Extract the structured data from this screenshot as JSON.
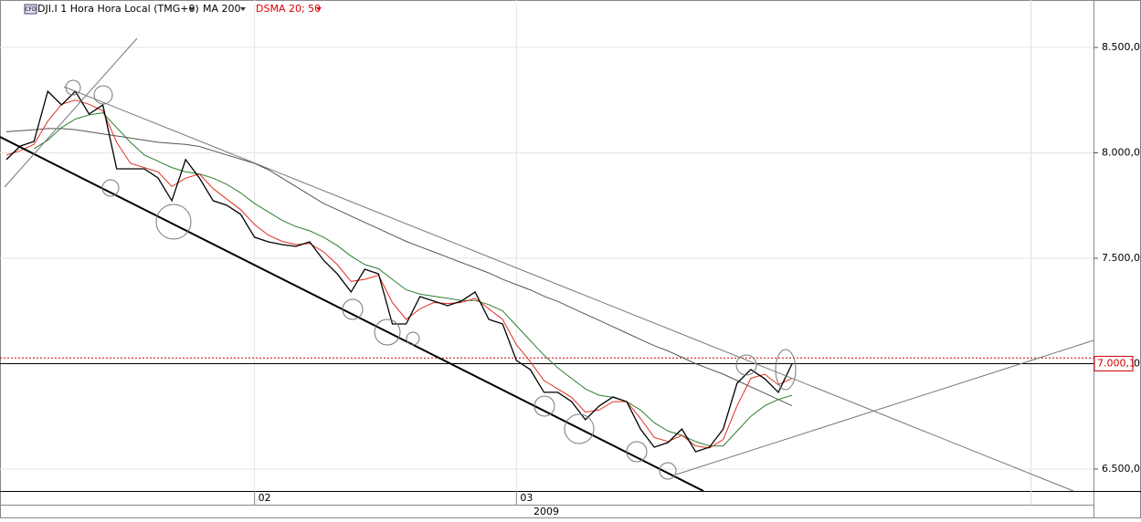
{
  "chart_data": {
    "type": "line",
    "title": "DJI.I 1 Hora Hora Local (TMG+0)",
    "badge": "CFD",
    "indicators": [
      "MA 200",
      "DSMA 20; 50"
    ],
    "categories": [
      null,
      null,
      null,
      null,
      null,
      null,
      null,
      null,
      null,
      null,
      null,
      null,
      null,
      null,
      null,
      null,
      null,
      null,
      "02",
      null,
      null,
      null,
      null,
      null,
      null,
      null,
      null,
      null,
      null,
      null,
      null,
      null,
      null,
      null,
      null,
      null,
      null,
      "03",
      null,
      null,
      null,
      null,
      null,
      null,
      null,
      null,
      null,
      null,
      null,
      null,
      null,
      null,
      null,
      null,
      null,
      null,
      null,
      null
    ],
    "year_label": "2009",
    "series": [
      {
        "name": "DJI.I",
        "color": "#000000",
        "width": 1.3,
        "values": [
          7968,
          8032,
          8054,
          8292,
          8227,
          8292,
          8184,
          8227,
          7924,
          7924,
          7924,
          7881,
          7773,
          7968,
          7881,
          7773,
          7751,
          7708,
          7600,
          7578,
          7565,
          7556,
          7578,
          7491,
          7426,
          7340,
          7448,
          7426,
          7188,
          7188,
          7318,
          7297,
          7275,
          7297,
          7340,
          7210,
          7188,
          7015,
          6972,
          6864,
          6864,
          6820,
          6734,
          6799,
          6842,
          6820,
          6690,
          6604,
          6626,
          6690,
          6582,
          6604,
          6690,
          6907,
          6972,
          6929,
          6864,
          7000
        ]
      },
      {
        "name": "DSMA 20",
        "color": "#e03020",
        "width": 1,
        "values": [
          7990,
          8010,
          8040,
          8150,
          8230,
          8250,
          8230,
          8200,
          8050,
          7950,
          7930,
          7910,
          7840,
          7880,
          7900,
          7830,
          7780,
          7730,
          7660,
          7610,
          7580,
          7565,
          7570,
          7530,
          7470,
          7390,
          7400,
          7420,
          7290,
          7210,
          7260,
          7290,
          7285,
          7290,
          7310,
          7260,
          7210,
          7090,
          7010,
          6920,
          6880,
          6840,
          6770,
          6780,
          6820,
          6820,
          6740,
          6650,
          6630,
          6660,
          6610,
          6600,
          6640,
          6800,
          6930,
          6950,
          6900,
          6930
        ]
      },
      {
        "name": "DSMA 50",
        "color": "#2e7d32",
        "width": 1,
        "values": [
          null,
          null,
          8020,
          8060,
          8120,
          8160,
          8180,
          8190,
          8120,
          8050,
          7990,
          7960,
          7930,
          7910,
          7900,
          7880,
          7850,
          7810,
          7760,
          7720,
          7680,
          7650,
          7630,
          7600,
          7560,
          7510,
          7470,
          7450,
          7400,
          7350,
          7330,
          7320,
          7310,
          7300,
          7300,
          7280,
          7250,
          7180,
          7110,
          7040,
          6980,
          6930,
          6880,
          6850,
          6840,
          6820,
          6780,
          6720,
          6680,
          6660,
          6630,
          6610,
          6610,
          6680,
          6750,
          6800,
          6830,
          6850
        ]
      },
      {
        "name": "MA 200",
        "color": "#555555",
        "width": 1,
        "values": [
          8100,
          8105,
          8110,
          8115,
          8115,
          8110,
          8100,
          8090,
          8080,
          8070,
          8060,
          8050,
          8045,
          8040,
          8030,
          8010,
          7990,
          7970,
          7950,
          7920,
          7880,
          7840,
          7800,
          7760,
          7730,
          7700,
          7670,
          7640,
          7610,
          7580,
          7555,
          7530,
          7505,
          7480,
          7455,
          7430,
          7400,
          7375,
          7350,
          7320,
          7295,
          7265,
          7235,
          7205,
          7175,
          7145,
          7115,
          7085,
          7060,
          7030,
          7000,
          6975,
          6950,
          6920,
          6890,
          6860,
          6830,
          6800
        ]
      }
    ],
    "ylim": [
      6396,
      8725
    ],
    "yticks": [
      {
        "value": 6500,
        "label": "6.500,0"
      },
      {
        "value": 7000,
        "label": "7.000,0"
      },
      {
        "value": 7500,
        "label": "7.500,0"
      },
      {
        "value": 8000,
        "label": "8.000,0"
      },
      {
        "value": 8500,
        "label": "8.500,0"
      }
    ],
    "last_price": {
      "value": 7000.1,
      "label": "7.000,1"
    },
    "alert_level": 7027,
    "grid": true
  }
}
